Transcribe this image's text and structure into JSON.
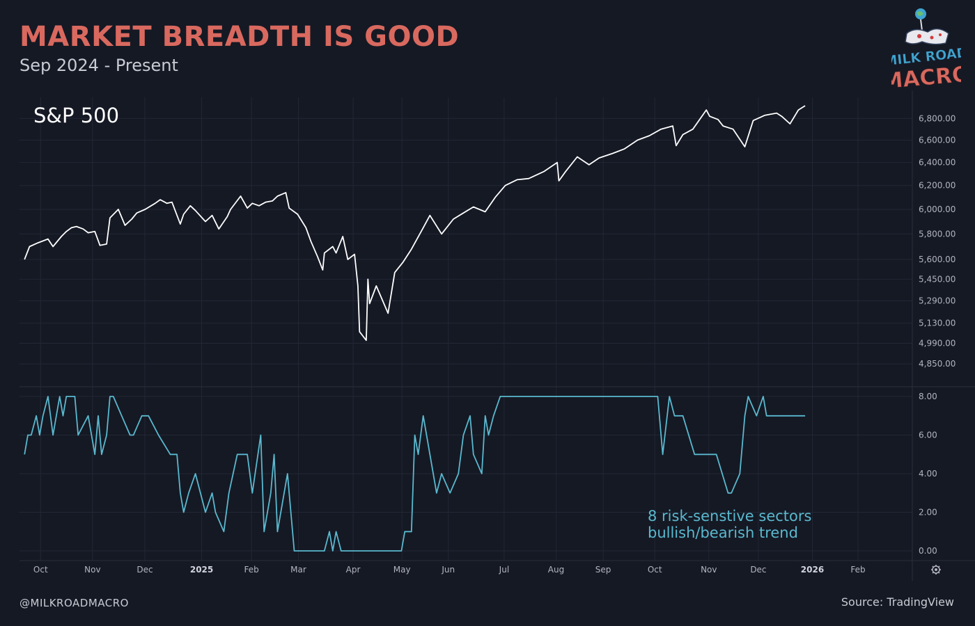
{
  "header": {
    "title": "MARKET BREADTH IS GOOD",
    "subtitle": "Sep 2024 - Present"
  },
  "footer": {
    "handle": "@MILKROADMACRO",
    "source": "Source: TradingView"
  },
  "logo": {
    "line1": "MILK ROAD",
    "line2": "MACRO"
  },
  "colors": {
    "background": "#151924",
    "title": "#d9695f",
    "price_line": "#ffffff",
    "breadth_line": "#5ab9cf",
    "grid": "#232735"
  },
  "chart_data": [
    {
      "type": "line",
      "title": "S&P 500",
      "ytick_labels": [
        "4,850.00",
        "4,990.00",
        "5,130.00",
        "5,290.00",
        "5,450.00",
        "5,600.00",
        "5,800.00",
        "6,000.00",
        "6,200.00",
        "6,400.00",
        "6,600.00",
        "6,800.00"
      ],
      "ylim": [
        4700,
        7000
      ],
      "yscale": "log",
      "xtick_labels": [
        "Oct",
        "Nov",
        "Dec",
        "2025",
        "Feb",
        "Mar",
        "Apr",
        "May",
        "Jun",
        "Jul",
        "Aug",
        "Sep",
        "Oct",
        "Nov",
        "Dec",
        "2026",
        "Feb"
      ],
      "x": [
        "2024-09-16",
        "2024-09-19",
        "2024-09-24",
        "2024-09-30",
        "2024-10-03",
        "2024-10-08",
        "2024-10-11",
        "2024-10-14",
        "2024-10-17",
        "2024-10-21",
        "2024-10-24",
        "2024-10-28",
        "2024-10-31",
        "2024-11-04",
        "2024-11-06",
        "2024-11-11",
        "2024-11-15",
        "2024-11-19",
        "2024-11-22",
        "2024-11-27",
        "2024-12-03",
        "2024-12-06",
        "2024-12-10",
        "2024-12-13",
        "2024-12-18",
        "2024-12-20",
        "2024-12-24",
        "2024-12-27",
        "2025-01-02",
        "2025-01-06",
        "2025-01-10",
        "2025-01-15",
        "2025-01-17",
        "2025-01-23",
        "2025-01-27",
        "2025-01-30",
        "2025-02-03",
        "2025-02-07",
        "2025-02-11",
        "2025-02-14",
        "2025-02-19",
        "2025-02-21",
        "2025-02-26",
        "2025-03-03",
        "2025-03-06",
        "2025-03-10",
        "2025-03-13",
        "2025-03-14",
        "2025-03-19",
        "2025-03-21",
        "2025-03-25",
        "2025-03-28",
        "2025-04-01",
        "2025-04-03",
        "2025-04-04",
        "2025-04-08",
        "2025-04-09",
        "2025-04-10",
        "2025-04-14",
        "2025-04-21",
        "2025-04-25",
        "2025-04-30",
        "2025-05-05",
        "2025-05-12",
        "2025-05-16",
        "2025-05-23",
        "2025-05-30",
        "2025-06-05",
        "2025-06-11",
        "2025-06-18",
        "2025-06-24",
        "2025-06-30",
        "2025-07-07",
        "2025-07-14",
        "2025-07-23",
        "2025-07-31",
        "2025-08-01",
        "2025-08-05",
        "2025-08-12",
        "2025-08-19",
        "2025-08-25",
        "2025-09-02",
        "2025-09-09",
        "2025-09-17",
        "2025-09-24",
        "2025-10-01",
        "2025-10-08",
        "2025-10-10",
        "2025-10-14",
        "2025-10-20",
        "2025-10-28",
        "2025-10-30",
        "2025-11-04",
        "2025-11-07",
        "2025-11-13",
        "2025-11-20",
        "2025-11-25",
        "2025-12-02",
        "2025-12-09",
        "2025-12-12",
        "2025-12-17",
        "2025-12-22",
        "2025-12-26"
      ],
      "values": [
        5600,
        5700,
        5730,
        5760,
        5700,
        5780,
        5820,
        5850,
        5860,
        5840,
        5810,
        5820,
        5710,
        5720,
        5930,
        6000,
        5870,
        5920,
        5970,
        6000,
        6050,
        6080,
        6050,
        6060,
        5880,
        5960,
        6030,
        5990,
        5900,
        5950,
        5840,
        5940,
        6000,
        6110,
        6010,
        6050,
        6030,
        6060,
        6070,
        6110,
        6140,
        6010,
        5960,
        5850,
        5740,
        5620,
        5520,
        5650,
        5700,
        5650,
        5780,
        5600,
        5640,
        5400,
        5070,
        5010,
        5450,
        5270,
        5400,
        5200,
        5500,
        5580,
        5680,
        5850,
        5950,
        5800,
        5920,
        5970,
        6020,
        5980,
        6100,
        6200,
        6250,
        6260,
        6320,
        6400,
        6240,
        6320,
        6450,
        6380,
        6440,
        6480,
        6520,
        6600,
        6640,
        6700,
        6730,
        6550,
        6650,
        6700,
        6880,
        6820,
        6790,
        6730,
        6700,
        6540,
        6780,
        6830,
        6850,
        6820,
        6750,
        6880,
        6920
      ]
    },
    {
      "type": "line",
      "title": "8 risk-senstive sectors bullish/bearish trend",
      "ytick_labels": [
        "0.00",
        "2.00",
        "4.00",
        "6.00",
        "8.00"
      ],
      "ylim": [
        0,
        8
      ],
      "x": [
        "2024-09-16",
        "2024-09-18",
        "2024-09-20",
        "2024-09-23",
        "2024-09-25",
        "2024-09-27",
        "2024-09-30",
        "2024-10-03",
        "2024-10-07",
        "2024-10-09",
        "2024-10-11",
        "2024-10-14",
        "2024-10-16",
        "2024-10-18",
        "2024-10-24",
        "2024-10-28",
        "2024-10-30",
        "2024-11-01",
        "2024-11-04",
        "2024-11-06",
        "2024-11-08",
        "2024-11-13",
        "2024-11-18",
        "2024-11-20",
        "2024-11-25",
        "2024-11-29",
        "2024-12-05",
        "2024-12-12",
        "2024-12-16",
        "2024-12-18",
        "2024-12-20",
        "2024-12-23",
        "2024-12-27",
        "2025-01-02",
        "2025-01-06",
        "2025-01-08",
        "2025-01-13",
        "2025-01-16",
        "2025-01-21",
        "2025-01-27",
        "2025-01-30",
        "2025-02-04",
        "2025-02-06",
        "2025-02-10",
        "2025-02-12",
        "2025-02-14",
        "2025-02-18",
        "2025-02-20",
        "2025-02-24",
        "2025-02-26",
        "2025-03-14",
        "2025-03-17",
        "2025-03-19",
        "2025-03-21",
        "2025-03-24",
        "2025-04-29",
        "2025-05-01",
        "2025-05-05",
        "2025-05-07",
        "2025-05-09",
        "2025-05-12",
        "2025-05-16",
        "2025-05-20",
        "2025-05-23",
        "2025-05-28",
        "2025-06-02",
        "2025-06-05",
        "2025-06-09",
        "2025-06-11",
        "2025-06-16",
        "2025-06-18",
        "2025-06-20",
        "2025-06-23",
        "2025-06-27",
        "2025-09-29",
        "2025-10-02",
        "2025-10-06",
        "2025-10-09",
        "2025-10-14",
        "2025-10-21",
        "2025-11-03",
        "2025-11-10",
        "2025-11-12",
        "2025-11-17",
        "2025-11-20",
        "2025-11-22",
        "2025-11-27",
        "2025-12-01",
        "2025-12-03",
        "2025-12-26"
      ],
      "values": [
        5,
        6,
        6,
        7,
        6,
        7,
        8,
        6,
        8,
        7,
        8,
        8,
        8,
        6,
        7,
        5,
        7,
        5,
        6,
        8,
        8,
        7,
        6,
        6,
        7,
        7,
        6,
        5,
        5,
        3,
        2,
        3,
        4,
        2,
        3,
        2,
        1,
        3,
        5,
        5,
        3,
        6,
        1,
        3,
        5,
        1,
        3,
        4,
        0,
        0,
        0,
        1,
        0,
        1,
        0,
        0,
        1,
        1,
        6,
        5,
        7,
        5,
        3,
        4,
        3,
        4,
        6,
        7,
        5,
        4,
        7,
        6,
        7,
        8,
        8,
        5,
        8,
        7,
        7,
        5,
        5,
        3,
        3,
        4,
        7,
        8,
        7,
        8,
        7,
        7
      ]
    }
  ]
}
